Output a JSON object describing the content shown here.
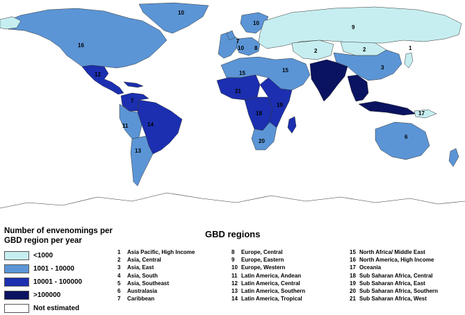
{
  "legend": {
    "title_line1": "Number of envenomings per",
    "title_line2": "GBD region per year",
    "items": [
      {
        "label": "<1000",
        "color": "#c6eef0"
      },
      {
        "label": "1001 - 10000",
        "color": "#5b95d6"
      },
      {
        "label": "10001 - 100000",
        "color": "#1b2fb0"
      },
      {
        "label": ">100000",
        "color": "#0a1360"
      },
      {
        "label": "Not estimated",
        "color": "#ffffff"
      }
    ]
  },
  "gbd": {
    "title": "GBD regions",
    "regions": [
      {
        "id": "1",
        "name": "Asia Pacific, High Income"
      },
      {
        "id": "2",
        "name": "Asia, Central"
      },
      {
        "id": "3",
        "name": "Asia, East"
      },
      {
        "id": "4",
        "name": "Asia, South"
      },
      {
        "id": "5",
        "name": "Asia, Southeast"
      },
      {
        "id": "6",
        "name": "Australasia"
      },
      {
        "id": "7",
        "name": "Caribbean"
      },
      {
        "id": "8",
        "name": "Europe, Central"
      },
      {
        "id": "9",
        "name": "Europe, Eastern"
      },
      {
        "id": "10",
        "name": "Europe, Western"
      },
      {
        "id": "11",
        "name": "Latin America, Andean"
      },
      {
        "id": "12",
        "name": "Latin America, Central"
      },
      {
        "id": "13",
        "name": "Latin America, Southern"
      },
      {
        "id": "14",
        "name": "Latin America, Tropical"
      },
      {
        "id": "15",
        "name": "North Africa/ Middle East"
      },
      {
        "id": "16",
        "name": "North America, High Income"
      },
      {
        "id": "17",
        "name": "Oceania"
      },
      {
        "id": "18",
        "name": "Sub Saharan Africa, Central"
      },
      {
        "id": "19",
        "name": "Sub Saharan Africa, East"
      },
      {
        "id": "20",
        "name": "Sub Saharan Africa, Southern"
      },
      {
        "id": "21",
        "name": "Sub Saharan Africa, West"
      }
    ]
  },
  "map_labels": {
    "greenland": "10",
    "north_america": "16",
    "eastern_europe": "9",
    "scandinavia": "10",
    "western_europe": "10",
    "central_europe": "8",
    "uk": "7",
    "central_asia_west": "2",
    "central_asia_east": "2",
    "east_asia": "3",
    "north_africa": "15",
    "middle_east": "15",
    "africa_west": "21",
    "africa_central": "18",
    "africa_east": "19",
    "africa_southern": "20",
    "latam_central": "12",
    "caribbean": "7",
    "andean": "11",
    "tropical": "14",
    "southern_latam": "13",
    "australia": "6",
    "oceania": "17",
    "japan": "1"
  }
}
